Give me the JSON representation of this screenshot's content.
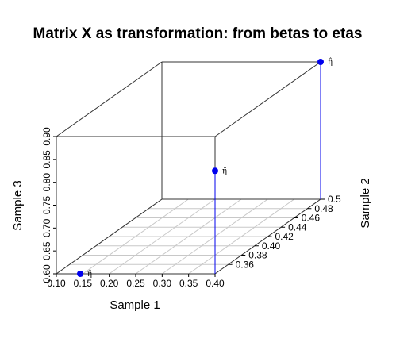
{
  "chart_data": {
    "type": "scatter3d",
    "title": "Matrix X as transformation: from betas to etas",
    "xlabel": "Sample 1",
    "ylabel": "Sample 2",
    "zlabel": "Sample 3",
    "xlim": [
      0.1,
      0.4
    ],
    "ylim": [
      0.34,
      0.5
    ],
    "zlim": [
      0.6,
      0.9
    ],
    "x_ticks": [
      "0.10",
      "0.15",
      "0.20",
      "0.25",
      "0.30",
      "0.35",
      "0.40"
    ],
    "y_ticks": [
      "0.36",
      "0.38",
      "0.40",
      "0.42",
      "0.44",
      "0.46",
      "0.48",
      "0.5"
    ],
    "z_ticks": [
      "0.60",
      "0.65",
      "0.70",
      "0.75",
      "0.80",
      "0.85",
      "0.90"
    ],
    "grid": true,
    "point_color": "#0000ee",
    "points": [
      {
        "label": "η̂",
        "x": 0.145,
        "y": 0.34,
        "z": 0.6
      },
      {
        "label": "η̂",
        "x": 0.4,
        "y": 0.34,
        "z": 0.825
      },
      {
        "label": "η̂",
        "x": 0.4,
        "y": 0.5,
        "z": 0.9
      }
    ]
  }
}
